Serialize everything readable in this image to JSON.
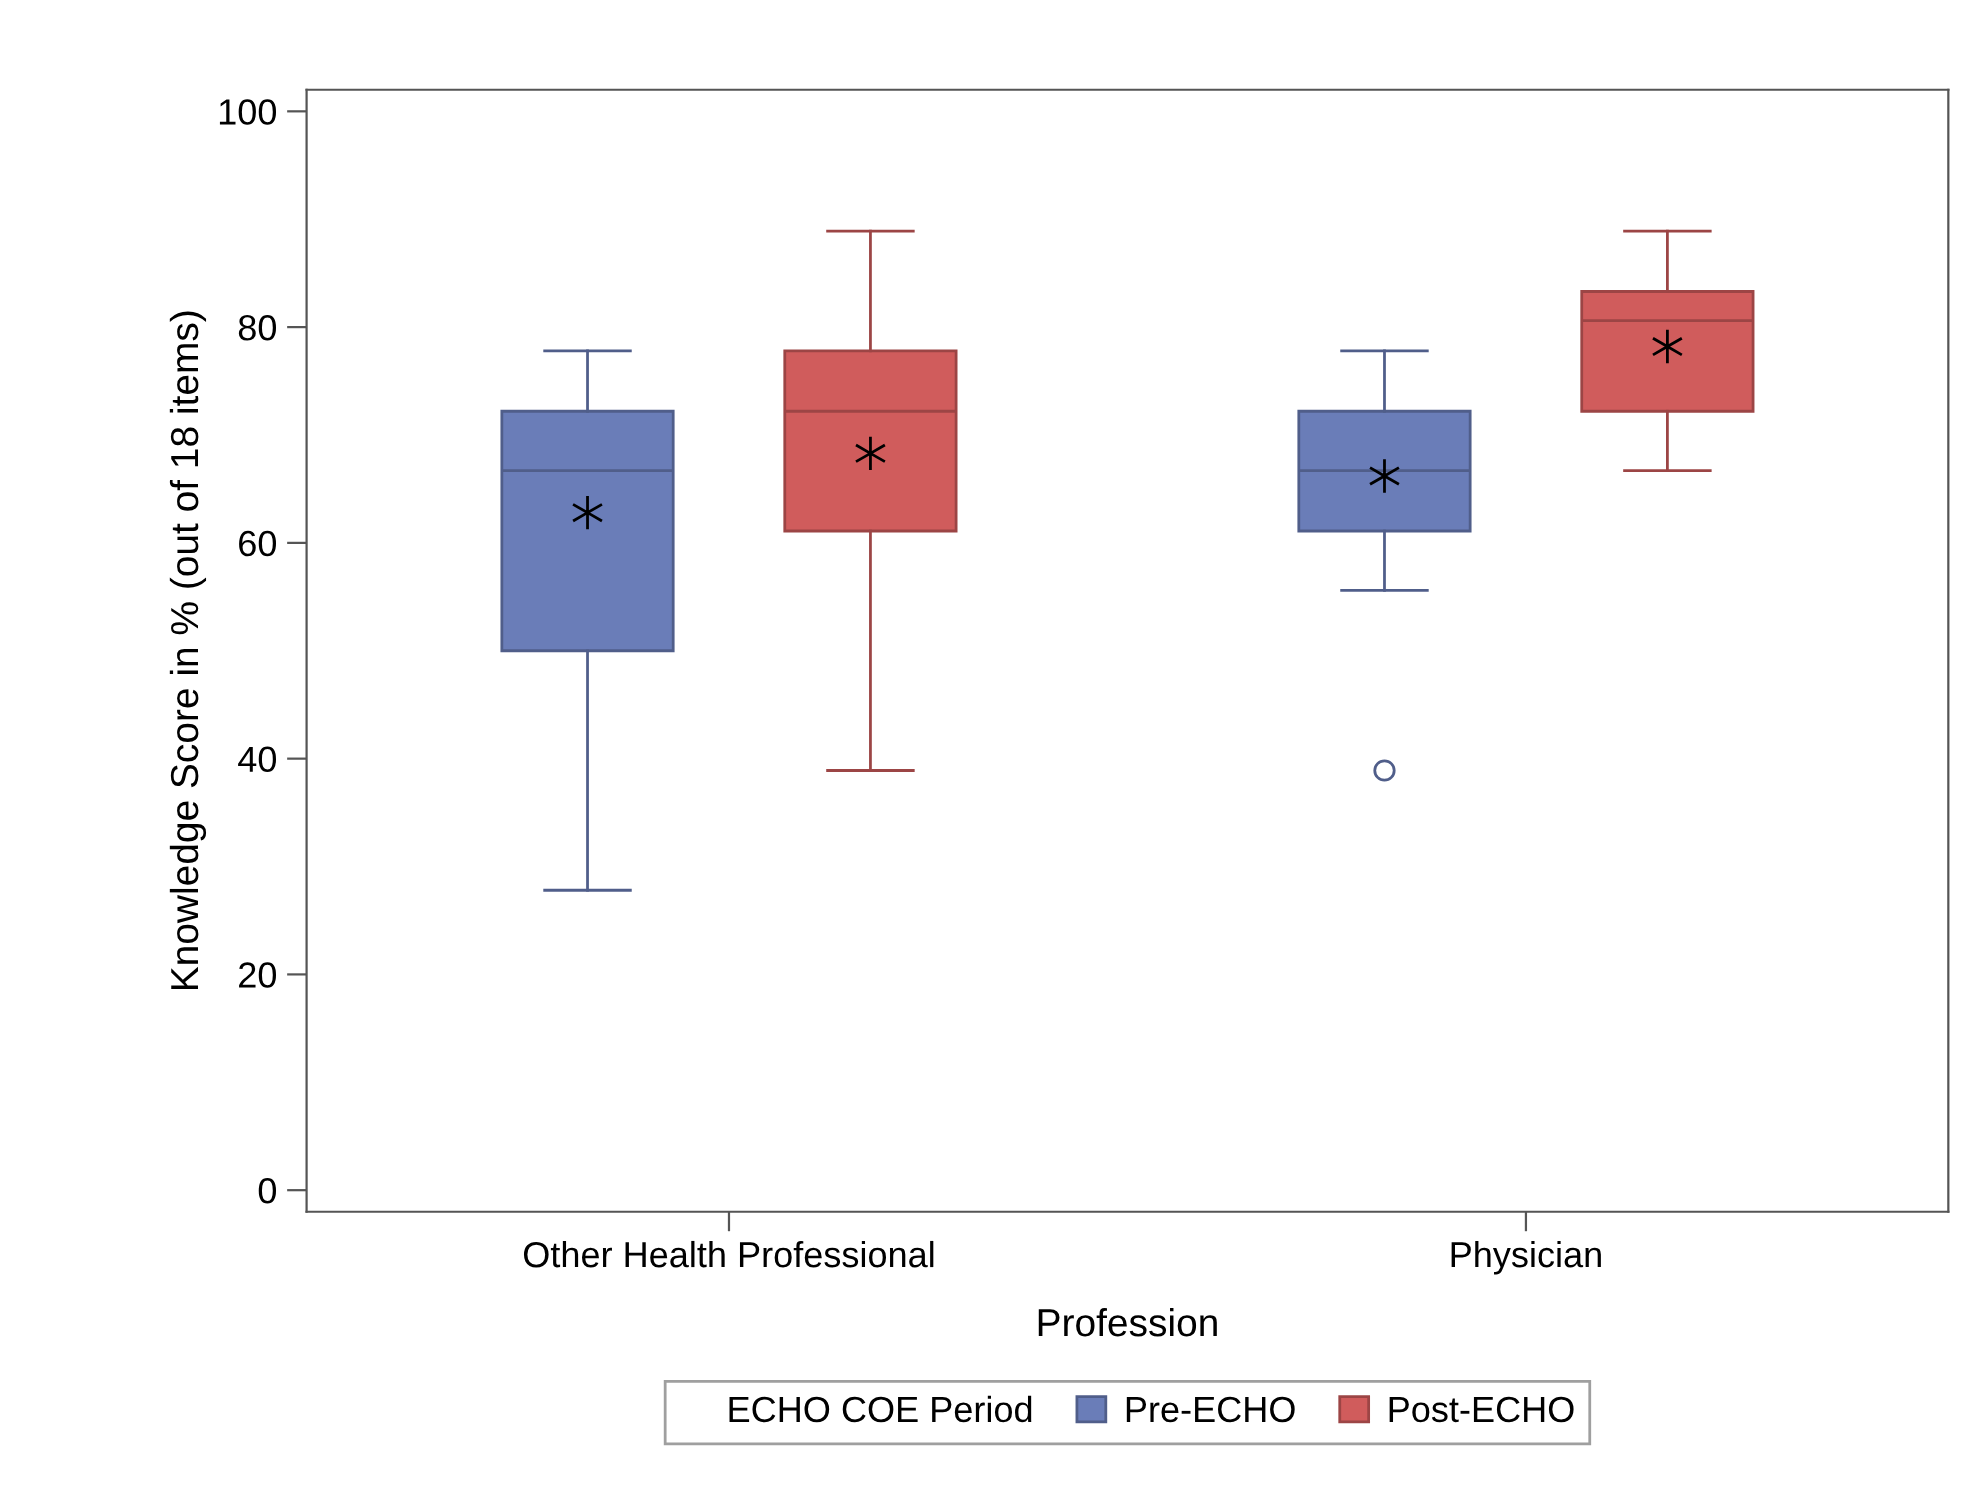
{
  "chart_data": {
    "type": "box",
    "xlabel": "Profession",
    "ylabel": "Knowledge Score in % (out of 18 items)",
    "legend_title": "ECHO COE Period",
    "categories": [
      "Other Health Professional",
      "Physician"
    ],
    "ylim": [
      -2,
      102
    ],
    "yticks": [
      0,
      20,
      40,
      60,
      80,
      100
    ],
    "legend": "bottom",
    "grid": false,
    "marker": "star",
    "series": [
      {
        "name": "Pre-ECHO",
        "color": "#6a7db8",
        "boxes": [
          {
            "low": 27.8,
            "q1": 50,
            "median": 66.7,
            "q3": 72.2,
            "high": 77.8,
            "mean": 62.8
          },
          {
            "low": 55.6,
            "q1": 61.1,
            "median": 66.7,
            "q3": 72.2,
            "high": 77.8,
            "mean": 66.2,
            "outliers": [
              38.9
            ]
          }
        ]
      },
      {
        "name": "Post-ECHO",
        "color": "#d05c5c",
        "boxes": [
          {
            "low": 38.9,
            "q1": 61.1,
            "median": 72.2,
            "q3": 77.8,
            "high": 88.9,
            "mean": 68.3
          },
          {
            "low": 66.7,
            "q1": 72.2,
            "median": 80.6,
            "q3": 83.3,
            "high": 88.9,
            "mean": 78.2
          }
        ]
      }
    ]
  }
}
